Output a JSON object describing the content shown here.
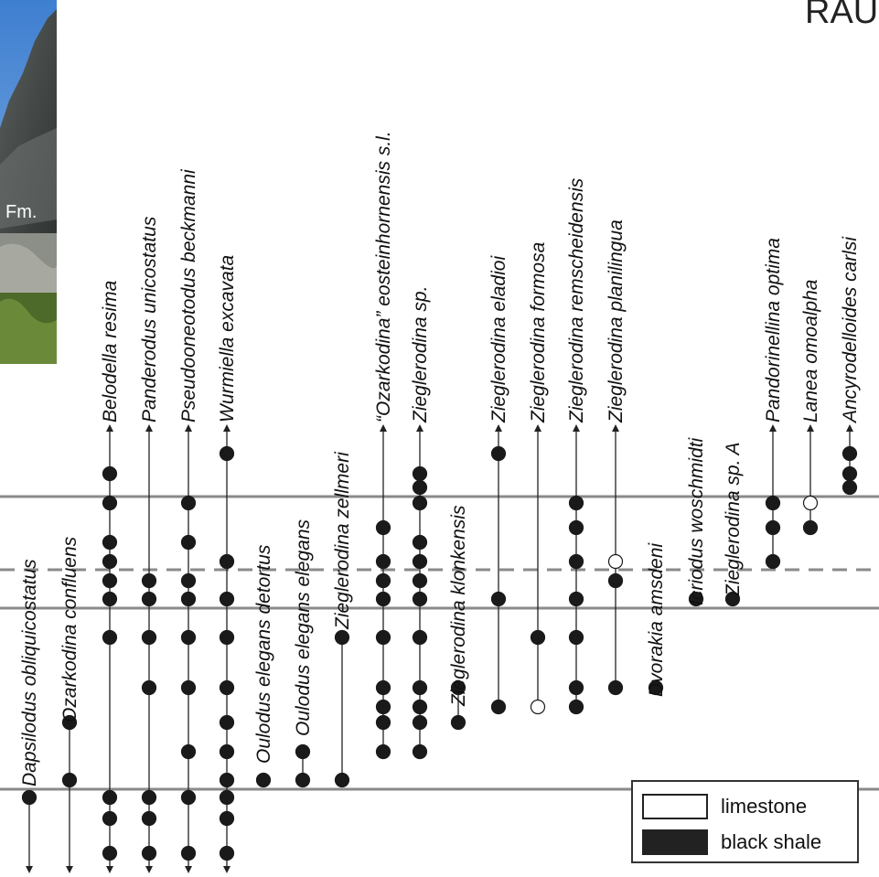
{
  "title": "RAU",
  "photo": {
    "label": "Fm."
  },
  "legend": {
    "items": [
      {
        "label": "limestone",
        "fill": "#ffffff"
      },
      {
        "label": "black shale",
        "fill": "#222222"
      }
    ]
  },
  "colors": {
    "line": "#8a8a8a",
    "dot": "#1a1a1a",
    "open": "#ffffff"
  },
  "taxa": [
    {
      "name": "Dapsilodus obliquicostatus",
      "bottom": "down",
      "top": null,
      "occ": [
        {
          "y": 872,
          "t": "s"
        }
      ]
    },
    {
      "name": "Ozarkodina confluens",
      "bottom": "down",
      "top": null,
      "occ": [
        {
          "y": 790,
          "t": "s"
        },
        {
          "y": 853,
          "t": "s"
        }
      ]
    },
    {
      "name": "Belodella resima",
      "bottom": "down",
      "top": "up",
      "occ": [
        {
          "y": 518,
          "t": "s"
        },
        {
          "y": 550,
          "t": "s"
        },
        {
          "y": 593,
          "t": "s"
        },
        {
          "y": 614,
          "t": "s"
        },
        {
          "y": 635,
          "t": "s"
        },
        {
          "y": 655,
          "t": "s"
        },
        {
          "y": 697,
          "t": "s"
        },
        {
          "y": 872,
          "t": "s"
        },
        {
          "y": 895,
          "t": "s"
        },
        {
          "y": 933,
          "t": "s"
        }
      ]
    },
    {
      "name": "Panderodus unicostatus",
      "bottom": "down",
      "top": "up",
      "occ": [
        {
          "y": 635,
          "t": "s"
        },
        {
          "y": 655,
          "t": "s"
        },
        {
          "y": 697,
          "t": "s"
        },
        {
          "y": 752,
          "t": "s"
        },
        {
          "y": 872,
          "t": "s"
        },
        {
          "y": 895,
          "t": "s"
        },
        {
          "y": 933,
          "t": "s"
        }
      ]
    },
    {
      "name": "Pseudooneotodus beckmanni",
      "bottom": "down",
      "top": "up",
      "occ": [
        {
          "y": 550,
          "t": "s"
        },
        {
          "y": 593,
          "t": "s"
        },
        {
          "y": 635,
          "t": "s"
        },
        {
          "y": 655,
          "t": "s"
        },
        {
          "y": 697,
          "t": "s"
        },
        {
          "y": 752,
          "t": "s"
        },
        {
          "y": 822,
          "t": "s"
        },
        {
          "y": 872,
          "t": "s"
        },
        {
          "y": 933,
          "t": "s"
        }
      ]
    },
    {
      "name": "Wurmiella excavata",
      "bottom": "down",
      "top": "up",
      "occ": [
        {
          "y": 496,
          "t": "s"
        },
        {
          "y": 614,
          "t": "s"
        },
        {
          "y": 655,
          "t": "s"
        },
        {
          "y": 697,
          "t": "s"
        },
        {
          "y": 752,
          "t": "s"
        },
        {
          "y": 790,
          "t": "s"
        },
        {
          "y": 822,
          "t": "s"
        },
        {
          "y": 853,
          "t": "s"
        },
        {
          "y": 872,
          "t": "s"
        },
        {
          "y": 895,
          "t": "s"
        },
        {
          "y": 933,
          "t": "s"
        }
      ]
    },
    {
      "name": "Oulodus elegans detortus",
      "bottom": null,
      "top": null,
      "occ": [
        {
          "y": 853,
          "t": "s"
        }
      ]
    },
    {
      "name": "Oulodus elegans elegans",
      "bottom": null,
      "top": null,
      "occ": [
        {
          "y": 822,
          "t": "s"
        },
        {
          "y": 853,
          "t": "s"
        }
      ]
    },
    {
      "name": "Zieglerodina zellmeri",
      "bottom": null,
      "top": null,
      "occ": [
        {
          "y": 697,
          "t": "s"
        },
        {
          "y": 853,
          "t": "s"
        }
      ]
    },
    {
      "name": "“Ozarkodina” eosteinhornensis s.l.",
      "bottom": null,
      "top": "up",
      "occ": [
        {
          "y": 577,
          "t": "s"
        },
        {
          "y": 614,
          "t": "s"
        },
        {
          "y": 635,
          "t": "s"
        },
        {
          "y": 655,
          "t": "s"
        },
        {
          "y": 697,
          "t": "s"
        },
        {
          "y": 752,
          "t": "s"
        },
        {
          "y": 773,
          "t": "s"
        },
        {
          "y": 790,
          "t": "s"
        },
        {
          "y": 822,
          "t": "s"
        }
      ]
    },
    {
      "name": "Zieglerodina sp.",
      "bottom": null,
      "top": "up",
      "occ": [
        {
          "y": 518,
          "t": "s"
        },
        {
          "y": 533,
          "t": "s"
        },
        {
          "y": 550,
          "t": "s"
        },
        {
          "y": 593,
          "t": "s"
        },
        {
          "y": 614,
          "t": "s"
        },
        {
          "y": 635,
          "t": "s"
        },
        {
          "y": 655,
          "t": "s"
        },
        {
          "y": 697,
          "t": "s"
        },
        {
          "y": 752,
          "t": "s"
        },
        {
          "y": 773,
          "t": "s"
        },
        {
          "y": 790,
          "t": "s"
        },
        {
          "y": 822,
          "t": "s"
        }
      ]
    },
    {
      "name": "Zieglerodina klonkensis",
      "bottom": null,
      "top": null,
      "occ": [
        {
          "y": 752,
          "t": "s"
        },
        {
          "y": 790,
          "t": "s"
        }
      ]
    },
    {
      "name": "Zieglerodina eladioi",
      "bottom": null,
      "top": "up",
      "occ": [
        {
          "y": 496,
          "t": "s"
        },
        {
          "y": 655,
          "t": "s"
        },
        {
          "y": 773,
          "t": "s"
        }
      ]
    },
    {
      "name": "Zieglerodina formosa",
      "bottom": null,
      "top": "up",
      "occ": [
        {
          "y": 697,
          "t": "s"
        },
        {
          "y": 773,
          "t": "l"
        }
      ]
    },
    {
      "name": "Zieglerodina remscheidensis",
      "bottom": null,
      "top": "up",
      "occ": [
        {
          "y": 550,
          "t": "s"
        },
        {
          "y": 577,
          "t": "s"
        },
        {
          "y": 614,
          "t": "s"
        },
        {
          "y": 655,
          "t": "s"
        },
        {
          "y": 697,
          "t": "s"
        },
        {
          "y": 752,
          "t": "s"
        },
        {
          "y": 773,
          "t": "s"
        }
      ]
    },
    {
      "name": "Zieglerodina planilingua",
      "bottom": null,
      "top": "up",
      "occ": [
        {
          "y": 614,
          "t": "l"
        },
        {
          "y": 635,
          "t": "s"
        },
        {
          "y": 752,
          "t": "s"
        }
      ]
    },
    {
      "name": "Dvorakia amsdeni",
      "bottom": null,
      "top": null,
      "occ": [
        {
          "y": 752,
          "t": "s"
        }
      ]
    },
    {
      "name": "Icriodus woschmidti",
      "bottom": null,
      "top": null,
      "occ": [
        {
          "y": 655,
          "t": "s"
        }
      ]
    },
    {
      "name": "Zieglerodina sp. A",
      "bottom": null,
      "top": null,
      "occ": [
        {
          "y": 655,
          "t": "s"
        }
      ]
    },
    {
      "name": "Pandorinellina optima",
      "bottom": null,
      "top": "up",
      "occ": [
        {
          "y": 550,
          "t": "s"
        },
        {
          "y": 577,
          "t": "s"
        },
        {
          "y": 614,
          "t": "s"
        }
      ]
    },
    {
      "name": "Lanea omoalpha",
      "bottom": null,
      "top": "up",
      "occ": [
        {
          "y": 550,
          "t": "l"
        },
        {
          "y": 577,
          "t": "s"
        }
      ]
    },
    {
      "name": "Ancyrodelloides carlsi",
      "bottom": null,
      "top": "up",
      "occ": [
        {
          "y": 496,
          "t": "s"
        },
        {
          "y": 518,
          "t": "s"
        },
        {
          "y": 533,
          "t": "s"
        }
      ]
    }
  ]
}
